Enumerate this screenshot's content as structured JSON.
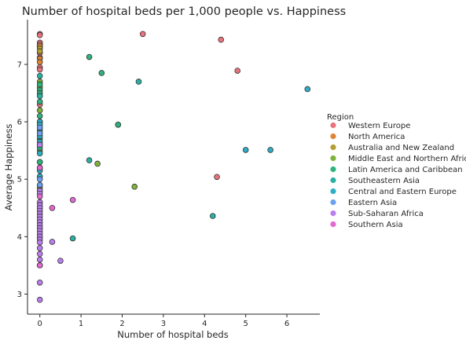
{
  "chart_data": {
    "type": "scatter",
    "title": "Number of hospital beds per 1,000 people vs. Happiness",
    "xlabel": "Number of hospital beds",
    "ylabel": "Average Happiness",
    "xlim": [
      -0.3,
      6.8
    ],
    "ylim": [
      2.65,
      7.78
    ],
    "xticks": [
      0,
      1,
      2,
      3,
      4,
      5,
      6
    ],
    "yticks": [
      3,
      4,
      5,
      6,
      7
    ],
    "grid": false,
    "legend": {
      "title": "Region",
      "placement": "right",
      "entries": [
        {
          "name": "Western Europe",
          "color": "#e8737d"
        },
        {
          "name": "North America",
          "color": "#de8435"
        },
        {
          "name": "Australia and New Zealand",
          "color": "#b39f2f"
        },
        {
          "name": "Middle East and Northern Africa",
          "color": "#7fb23a"
        },
        {
          "name": "Latin America and Caribbean",
          "color": "#2db37d"
        },
        {
          "name": "Southeastern Asia",
          "color": "#2ab0a2"
        },
        {
          "name": "Central and Eastern Europe",
          "color": "#2bafc6"
        },
        {
          "name": "Eastern Asia",
          "color": "#6aa0f0"
        },
        {
          "name": "Sub-Saharan Africa",
          "color": "#bb7eee"
        },
        {
          "name": "Southern Asia",
          "color": "#e468d0"
        }
      ]
    },
    "series": [
      {
        "name": "Western Europe",
        "x": [
          0,
          0,
          0,
          0,
          0,
          0,
          0,
          0,
          0,
          0,
          0,
          0,
          2.5,
          4.4,
          4.8,
          4.3
        ],
        "y": [
          7.53,
          7.51,
          7.38,
          7.35,
          7.32,
          7.29,
          7.2,
          7.12,
          6.95,
          6.91,
          6.45,
          6.3,
          7.53,
          7.43,
          6.89,
          5.04
        ]
      },
      {
        "name": "North America",
        "x": [
          0,
          0,
          0
        ],
        "y": [
          7.32,
          7.1,
          7.04
        ]
      },
      {
        "name": "Australia and New Zealand",
        "x": [
          0,
          0
        ],
        "y": [
          7.28,
          7.23
        ]
      },
      {
        "name": "Middle East and Northern Africa",
        "x": [
          0,
          0,
          0,
          0,
          0,
          0,
          0,
          1.9,
          1.4,
          2.3,
          0,
          0
        ],
        "y": [
          6.7,
          6.6,
          6.2,
          6.0,
          5.5,
          5.3,
          5.2,
          5.95,
          5.27,
          4.87,
          4.5,
          4.85
        ]
      },
      {
        "name": "Latin America and Caribbean",
        "x": [
          0,
          0,
          0,
          0,
          0,
          0,
          0,
          0,
          0,
          0,
          1.2,
          1.5,
          1.9,
          0
        ],
        "y": [
          6.65,
          6.55,
          6.5,
          6.35,
          6.1,
          6.0,
          5.9,
          5.8,
          5.7,
          5.55,
          7.13,
          6.85,
          5.95,
          5.3
        ]
      },
      {
        "name": "Southeastern Asia",
        "x": [
          0,
          0,
          0,
          0,
          2.4,
          1.2,
          4.2,
          0.8
        ],
        "y": [
          6.8,
          6.45,
          5.2,
          4.9,
          6.7,
          5.33,
          4.36,
          3.97
        ]
      },
      {
        "name": "Central and Eastern Europe",
        "x": [
          0,
          0,
          0,
          0,
          0,
          0,
          0,
          0,
          0,
          6.5,
          5.0,
          5.6
        ],
        "y": [
          6.0,
          5.95,
          5.85,
          5.75,
          5.65,
          5.6,
          5.45,
          5.15,
          5.05,
          6.57,
          5.51,
          5.51
        ]
      },
      {
        "name": "Eastern Asia",
        "x": [
          0,
          0,
          0,
          0
        ],
        "y": [
          5.9,
          5.8,
          5.0,
          4.9
        ]
      },
      {
        "name": "Sub-Saharan Africa",
        "x": [
          0,
          0,
          0,
          0,
          0,
          0,
          0,
          0,
          0,
          0,
          0,
          0,
          0,
          0,
          0,
          0,
          0,
          0,
          0,
          0,
          0,
          0,
          0,
          0,
          0.3,
          0.5
        ],
        "y": [
          5.6,
          4.8,
          4.75,
          4.6,
          4.55,
          4.5,
          4.45,
          4.4,
          4.35,
          4.3,
          4.25,
          4.2,
          4.15,
          4.1,
          4.05,
          4.0,
          3.95,
          3.9,
          3.8,
          3.7,
          3.6,
          3.5,
          3.2,
          2.9,
          3.91,
          3.58
        ]
      },
      {
        "name": "Southern Asia",
        "x": [
          0,
          0,
          0,
          0.8,
          0.3
        ],
        "y": [
          5.2,
          4.7,
          3.5,
          4.64,
          4.5
        ]
      }
    ]
  }
}
